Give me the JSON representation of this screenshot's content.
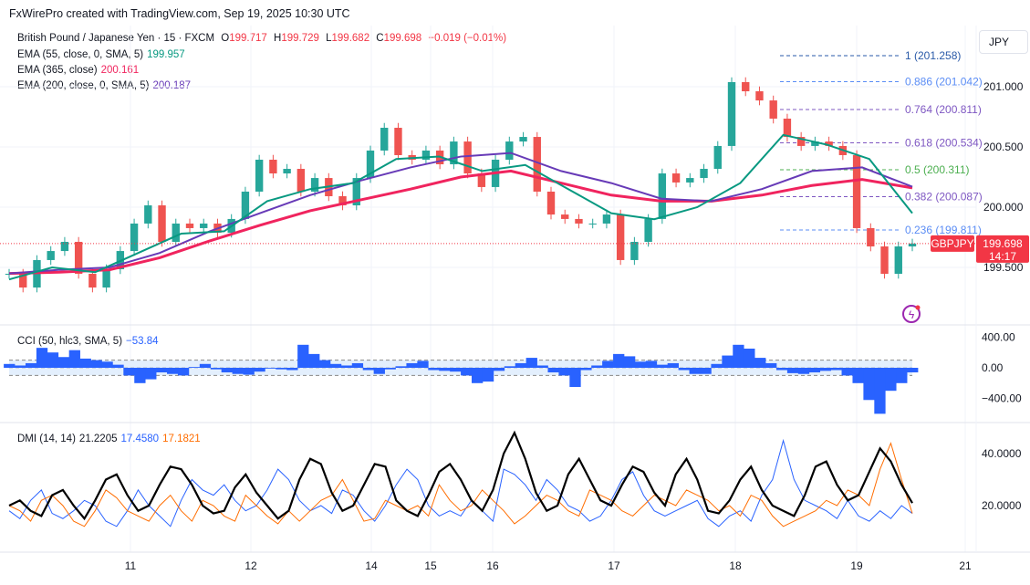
{
  "credit": "FxWirePro created with TradingView.com, Sep 19, 2025 10:30 UTC",
  "currency_button": "JPY",
  "legend": {
    "symbol": "British Pound / Japanese Yen · 15 · FXCM",
    "o_label": "O",
    "o": "199.717",
    "h_label": "H",
    "h": "199.729",
    "l_label": "L",
    "l": "199.682",
    "c_label": "C",
    "c": "199.698",
    "change": "−0.019 (−0.01%)",
    "ema55_label": "EMA (55, close, 0, SMA, 5)",
    "ema55": "199.957",
    "ema365_label": "EMA (365, close)",
    "ema365": "200.161",
    "ema200_label": "EMA (200, close, 0, SMA, 5)",
    "ema200": "200.187",
    "cci_label": "CCI (50, hlc3, SMA, 5)",
    "cci": "−53.84",
    "dmi_label": "DMI (14, 14)",
    "adx": "21.2205",
    "plus_di": "17.4580",
    "minus_di": "17.1821"
  },
  "price_tag": {
    "symbol": "GBPJPY",
    "price": "199.698",
    "countdown": "14:17"
  },
  "colors": {
    "up": "#26a69a",
    "down": "#ef5350",
    "ema55": "#089981",
    "ema365": "#f0245e",
    "ema200": "#673ab7",
    "cci": "#2962ff",
    "adx": "#000000",
    "plus": "#2962ff",
    "minus": "#ff6d00"
  },
  "chart_data": [
    {
      "type": "candlestick",
      "title": "GBPJPY 15",
      "ylim": [
        199.3,
        201.3
      ],
      "yticks": [
        "201.000",
        "200.500",
        "200.000",
        "199.500"
      ],
      "yticks_values": [
        201.0,
        200.5,
        200.0,
        199.5
      ],
      "xticks": [
        "11",
        "12",
        "14",
        "15",
        "16",
        "17",
        "18",
        "19",
        "21"
      ],
      "close": [
        199.447,
        199.333,
        199.561,
        199.636,
        199.712,
        199.447,
        199.333,
        199.485,
        199.636,
        199.864,
        200.015,
        199.712,
        199.864,
        199.826,
        199.864,
        199.788,
        199.902,
        200.129,
        200.394,
        200.28,
        200.318,
        200.129,
        200.242,
        200.091,
        200.015,
        200.242,
        200.47,
        200.659,
        200.432,
        200.394,
        200.47,
        200.356,
        200.545,
        200.28,
        200.167,
        200.394,
        200.545,
        200.583,
        200.129,
        199.939,
        199.902,
        199.864,
        199.864,
        199.939,
        199.561,
        199.712,
        199.902,
        200.28,
        200.205,
        200.242,
        200.318,
        200.508,
        201.038,
        200.962,
        200.886,
        200.735,
        200.583,
        200.508,
        200.545,
        200.508,
        200.432,
        199.826,
        199.674,
        199.447,
        199.674,
        199.698
      ],
      "ema55": [
        199.4,
        199.5,
        199.46,
        199.62,
        199.78,
        199.8,
        200.05,
        200.15,
        200.2,
        200.4,
        200.42,
        200.3,
        200.35,
        200.15,
        199.95,
        199.9,
        200.0,
        200.2,
        200.6,
        200.52,
        200.4,
        199.95
      ],
      "ema200": [
        199.45,
        199.48,
        199.5,
        199.62,
        199.8,
        199.95,
        200.1,
        200.22,
        200.33,
        200.42,
        200.45,
        200.3,
        200.2,
        200.07,
        200.05,
        200.15,
        200.3,
        200.33,
        200.17
      ],
      "ema365": [
        199.45,
        199.46,
        199.48,
        199.58,
        199.72,
        199.85,
        199.97,
        200.06,
        200.15,
        200.25,
        200.3,
        200.2,
        200.1,
        200.05,
        200.05,
        200.1,
        200.18,
        200.23,
        200.16
      ],
      "fib": [
        {
          "label": "1 (201.258)",
          "v": 201.258,
          "c": "#2a5aa8"
        },
        {
          "label": "0.886 (201.042)",
          "v": 201.042,
          "c": "#5b8df5"
        },
        {
          "label": "0.764 (200.811)",
          "v": 200.811,
          "c": "#7e57c2"
        },
        {
          "label": "0.618 (200.534)",
          "v": 200.534,
          "c": "#7e57c2"
        },
        {
          "label": "0.5 (200.311)",
          "v": 200.311,
          "c": "#4caf50"
        },
        {
          "label": "0.382 (200.087)",
          "v": 200.087,
          "c": "#7e57c2"
        },
        {
          "label": "0.236 (199.811)",
          "v": 199.811,
          "c": "#5b8df5"
        }
      ]
    },
    {
      "type": "area",
      "title": "CCI",
      "ylim": [
        -600,
        500
      ],
      "yticks": [
        "400.00",
        "0.00",
        "−400.00"
      ],
      "yticks_values": [
        400,
        0,
        -400
      ],
      "band": [
        100,
        -100
      ],
      "values": [
        50,
        30,
        60,
        260,
        200,
        140,
        230,
        120,
        100,
        80,
        40,
        -100,
        -200,
        -150,
        -60,
        -80,
        -100,
        10,
        50,
        -20,
        -60,
        -80,
        -90,
        -50,
        -10,
        -20,
        -30,
        300,
        180,
        100,
        50,
        30,
        60,
        -30,
        -80,
        -20,
        20,
        60,
        90,
        -30,
        -40,
        -50,
        -100,
        -200,
        -180,
        -40,
        20,
        60,
        130,
        30,
        -60,
        -100,
        -250,
        -30,
        30,
        90,
        180,
        150,
        80,
        90,
        40,
        60,
        -30,
        -80,
        -80,
        50,
        160,
        300,
        250,
        130,
        60,
        -30,
        -70,
        -80,
        -60,
        -40,
        -30,
        -100,
        -200,
        -420,
        -600,
        -300,
        -200,
        -60
      ]
    },
    {
      "type": "line",
      "title": "DMI",
      "ylim": [
        5,
        50
      ],
      "yticks": [
        "40.0000",
        "20.0000"
      ],
      "yticks_values": [
        40,
        20
      ],
      "adx": [
        20,
        22,
        18,
        16,
        24,
        26,
        20,
        15,
        22,
        30,
        32,
        24,
        18,
        20,
        28,
        35,
        34,
        28,
        20,
        17,
        18,
        27,
        32,
        25,
        20,
        15,
        18,
        30,
        38,
        36,
        25,
        18,
        20,
        28,
        36,
        35,
        22,
        18,
        16,
        24,
        33,
        36,
        30,
        22,
        18,
        26,
        40,
        48,
        38,
        25,
        18,
        20,
        32,
        38,
        30,
        22,
        20,
        28,
        35,
        33,
        25,
        20,
        32,
        38,
        30,
        18,
        17,
        22,
        30,
        35,
        26,
        20,
        18,
        16,
        24,
        35,
        37,
        28,
        22,
        24,
        33,
        42,
        37,
        28,
        21
      ],
      "plus": [
        18,
        15,
        22,
        26,
        17,
        15,
        18,
        22,
        20,
        14,
        12,
        18,
        26,
        20,
        16,
        12,
        22,
        30,
        26,
        24,
        28,
        22,
        18,
        20,
        26,
        34,
        30,
        22,
        18,
        20,
        17,
        26,
        24,
        18,
        14,
        20,
        28,
        34,
        30,
        20,
        16,
        18,
        16,
        22,
        18,
        14,
        34,
        32,
        28,
        22,
        30,
        26,
        20,
        18,
        14,
        16,
        22,
        30,
        33,
        24,
        18,
        16,
        18,
        20,
        22,
        15,
        12,
        16,
        18,
        14,
        24,
        30,
        45,
        30,
        22,
        20,
        18,
        15,
        22,
        16,
        14,
        18,
        15,
        20,
        17
      ],
      "minus": [
        20,
        18,
        14,
        22,
        24,
        20,
        14,
        12,
        18,
        26,
        23,
        18,
        16,
        14,
        20,
        24,
        18,
        14,
        22,
        20,
        16,
        14,
        24,
        20,
        16,
        13,
        18,
        14,
        18,
        22,
        24,
        30,
        22,
        14,
        15,
        22,
        20,
        18,
        20,
        16,
        28,
        22,
        18,
        20,
        26,
        22,
        18,
        13,
        16,
        20,
        24,
        22,
        18,
        16,
        26,
        24,
        22,
        18,
        16,
        20,
        24,
        22,
        20,
        26,
        24,
        22,
        18,
        20,
        16,
        24,
        22,
        16,
        12,
        14,
        16,
        18,
        22,
        20,
        26,
        24,
        20,
        34,
        44,
        30,
        17
      ]
    }
  ]
}
